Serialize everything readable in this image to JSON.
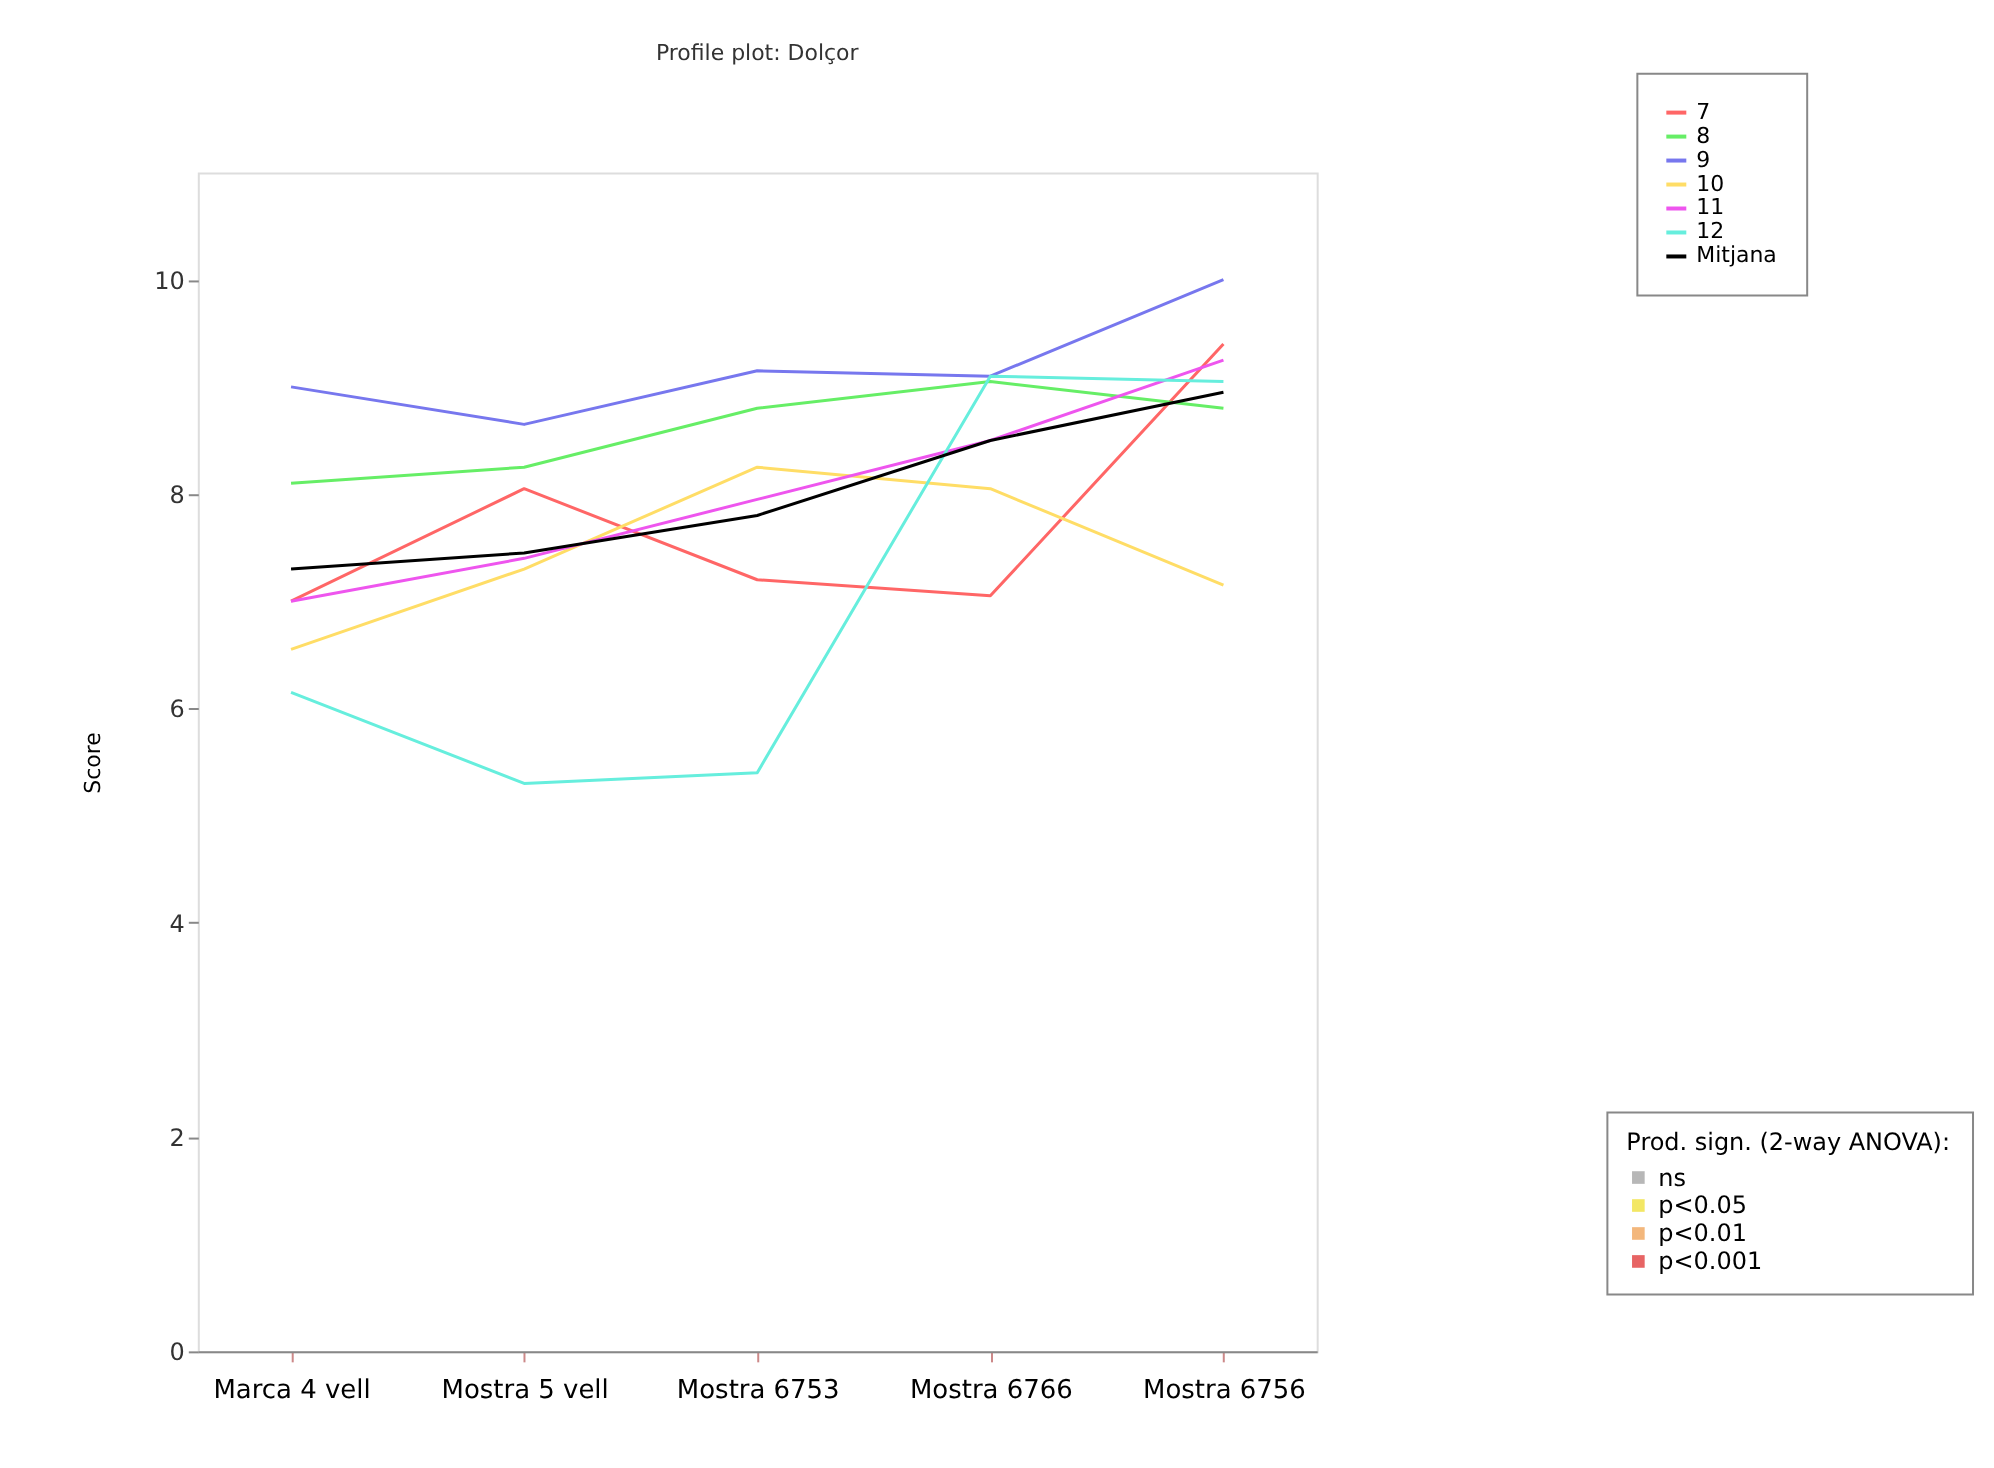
{
  "chart_data": {
    "type": "line",
    "title": "Profile plot: Dolçor",
    "ylabel": "Score",
    "categories": [
      "Marca 4  vell",
      "Mostra 5 vell",
      "Mostra 6753",
      "Mostra 6766",
      "Mostra 6756"
    ],
    "series": [
      {
        "name": "7",
        "color": "#ff6666",
        "values": [
          7.0,
          8.05,
          7.2,
          7.05,
          9.4
        ]
      },
      {
        "name": "8",
        "color": "#66ee66",
        "values": [
          8.1,
          8.25,
          8.8,
          9.05,
          8.8
        ]
      },
      {
        "name": "9",
        "color": "#7777ee",
        "values": [
          9.0,
          8.65,
          9.15,
          9.1,
          10.0
        ]
      },
      {
        "name": "10",
        "color": "#ffdd66",
        "values": [
          6.55,
          7.3,
          8.25,
          8.05,
          7.15
        ]
      },
      {
        "name": "11",
        "color": "#ee55ee",
        "values": [
          7.0,
          7.4,
          7.95,
          8.5,
          9.25
        ]
      },
      {
        "name": "12",
        "color": "#66eedd",
        "values": [
          6.15,
          5.3,
          5.4,
          9.1,
          9.05
        ]
      },
      {
        "name": "Mitjana",
        "color": "#000000",
        "values": [
          7.3,
          7.45,
          7.8,
          8.5,
          8.95
        ]
      },
      {
        "name": "ns",
        "type": "scatter",
        "color": "#999999",
        "values": [
          null,
          null,
          null,
          null,
          null
        ]
      },
      {
        "name": "p<0.05",
        "type": "scatter",
        "color": "#eedd22",
        "values": [
          null,
          null,
          null,
          null,
          null
        ]
      },
      {
        "name": "p<0.01",
        "type": "scatter",
        "color": "#ee9944",
        "values": [
          null,
          null,
          null,
          null,
          null
        ]
      },
      {
        "name": "p<0.001",
        "type": "scatter",
        "color": "#dd2222",
        "values": [
          null,
          null,
          null,
          null,
          null
        ]
      }
    ],
    "legend_title": "Prod. sign. (2-way ANOVA):",
    "ylim": [
      0,
      11
    ],
    "yticks": [
      0,
      2,
      4,
      6,
      8,
      10
    ],
    "grid": false,
    "legend": "right",
    "marker": "none",
    "line_style": "solid"
  }
}
